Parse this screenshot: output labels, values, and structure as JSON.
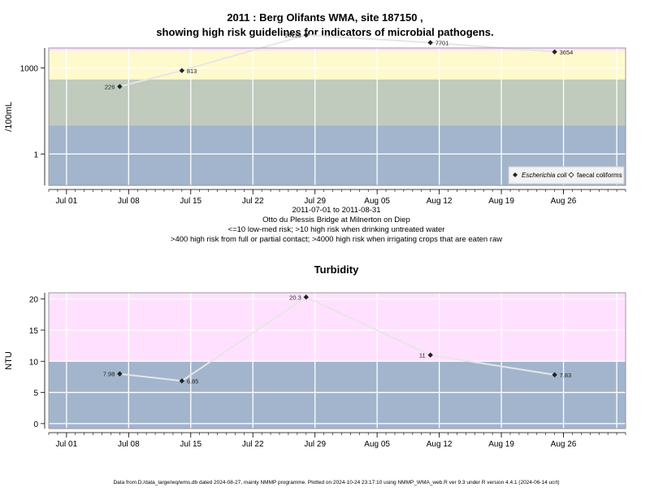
{
  "chart_data": [
    {
      "type": "line",
      "title": "2011 : Berg Olifants WMA, site 187150 ,",
      "subtitle": "showing high risk guidelines for indicators of microbial pathogens.",
      "xlabel": "",
      "ylabel": "/100mL",
      "y_scale": "log10",
      "ylim": [
        0.08,
        5000
      ],
      "xlim": [
        "2011-06-29",
        "2011-09-02"
      ],
      "x_ticks": [
        {
          "date": "2011-07-01",
          "label": "Jul 01"
        },
        {
          "date": "2011-07-08",
          "label": "Jul 08"
        },
        {
          "date": "2011-07-15",
          "label": "Jul 15"
        },
        {
          "date": "2011-07-22",
          "label": "Jul 22"
        },
        {
          "date": "2011-07-29",
          "label": "Jul 29"
        },
        {
          "date": "2011-08-05",
          "label": "Aug 05"
        },
        {
          "date": "2011-08-12",
          "label": "Aug 12"
        },
        {
          "date": "2011-08-19",
          "label": "Aug 19"
        },
        {
          "date": "2011-08-26",
          "label": "Aug 26"
        }
      ],
      "y_ticks": [
        {
          "value": 1,
          "label": "1"
        },
        {
          "value": 1000,
          "label": "1000"
        }
      ],
      "bands": [
        {
          "from": 0.08,
          "to": 10,
          "color": "#a2b5cd"
        },
        {
          "from": 10,
          "to": 400,
          "color": "#c0cabd"
        },
        {
          "from": 400,
          "to": 4000,
          "color": "#fffacd"
        },
        {
          "from": 4000,
          "to": 5000,
          "color": "#ffe1ff"
        }
      ],
      "series": [
        {
          "name": "Escherichia coli",
          "marker": "filled-diamond",
          "x": [
            "2011-07-07",
            "2011-07-14",
            "2011-07-28",
            "2011-08-11",
            "2011-08-25"
          ],
          "values": [
            226,
            813,
            14136,
            7701,
            3654
          ],
          "labels": [
            "226",
            "813",
            "14136",
            "7701",
            "3654"
          ],
          "label_side": [
            "left",
            "right",
            "left",
            "right",
            "right"
          ]
        },
        {
          "name": "faecal coliforms",
          "marker": "open-diamond",
          "x": [],
          "values": []
        }
      ],
      "legend_position": "bottom-right",
      "grid": true,
      "notes": [
        "2011-07-01 to 2011-08-31",
        "Otto du Plessis Bridge at Milnerton on Diep",
        "<=10 low-med risk; >10 high risk when drinking untreated water",
        ">400 high risk from full or partial contact; >4000 high risk when irrigating crops that are eaten raw"
      ]
    },
    {
      "type": "line",
      "title": "Turbidity",
      "xlabel": "",
      "ylabel": "NTU",
      "ylim": [
        -0.8,
        21
      ],
      "xlim": [
        "2011-06-29",
        "2011-09-02"
      ],
      "x_ticks": [
        {
          "date": "2011-07-01",
          "label": "Jul 01"
        },
        {
          "date": "2011-07-08",
          "label": "Jul 08"
        },
        {
          "date": "2011-07-15",
          "label": "Jul 15"
        },
        {
          "date": "2011-07-22",
          "label": "Jul 22"
        },
        {
          "date": "2011-07-29",
          "label": "Jul 29"
        },
        {
          "date": "2011-08-05",
          "label": "Aug 05"
        },
        {
          "date": "2011-08-12",
          "label": "Aug 12"
        },
        {
          "date": "2011-08-19",
          "label": "Aug 19"
        },
        {
          "date": "2011-08-26",
          "label": "Aug 26"
        }
      ],
      "y_ticks": [
        {
          "value": 0,
          "label": "0"
        },
        {
          "value": 5,
          "label": "5"
        },
        {
          "value": 10,
          "label": "10"
        },
        {
          "value": 15,
          "label": "15"
        },
        {
          "value": 20,
          "label": "20"
        }
      ],
      "bands": [
        {
          "from": -0.8,
          "to": 10,
          "color": "#a2b5cd"
        },
        {
          "from": 10,
          "to": 21,
          "color": "#ffe1ff"
        }
      ],
      "series": [
        {
          "name": "",
          "marker": "filled-diamond",
          "x": [
            "2011-07-07",
            "2011-07-14",
            "2011-07-28",
            "2011-08-11",
            "2011-08-25"
          ],
          "values": [
            7.98,
            6.85,
            20.3,
            11,
            7.83
          ],
          "labels": [
            "7.98",
            "6.85",
            "20.3",
            "11",
            "7.83"
          ],
          "label_side": [
            "left",
            "right",
            "left",
            "left",
            "right"
          ]
        }
      ],
      "grid": true
    }
  ],
  "footer": "Data from D:/data_large/wq/wms.db dated 2024-08-27, mainly NMMP programme. Plotted on 2024-10-24 23:17:10 using NMMP_WMA_web.R ver 9.3 under R version 4.4.1 (2024-06-14 ucrt)"
}
